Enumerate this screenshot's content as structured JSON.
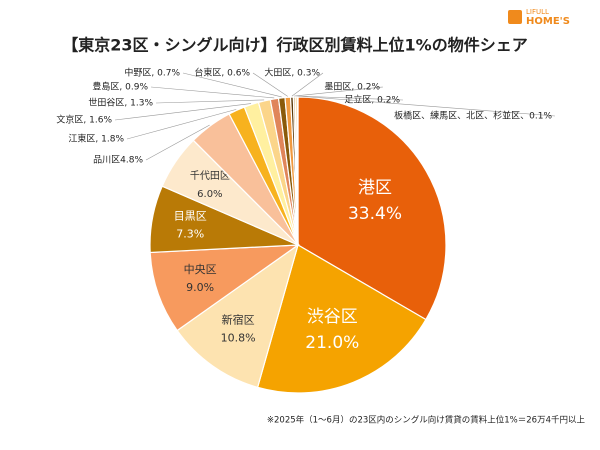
{
  "chart_data": {
    "type": "pie",
    "title": "【東京23区・シングル向け】行政区別賃料上位1%の物件シェア",
    "logo": [
      "LIFULL",
      "HOME'S"
    ],
    "footnote": "※2025年（1～6月）の23区内のシングル向け賃貸の賃料上位1%＝26万4千円以上",
    "values": [
      33.4,
      21.0,
      10.8,
      9.0,
      7.3,
      6.0,
      4.8,
      1.8,
      1.6,
      1.3,
      0.9,
      0.7,
      0.6,
      0.3,
      0.2,
      0.2,
      0.1
    ],
    "labels": [
      [
        "港区",
        "33.4%"
      ],
      [
        "渋谷区",
        "21.0%"
      ],
      [
        "新宿区",
        "10.8%"
      ],
      [
        "中央区",
        "9.0%"
      ],
      [
        "目黒区",
        "7.3%"
      ],
      [
        "千代田区",
        "6.0%"
      ],
      [
        "品川区4.8%"
      ],
      [
        "江東区, 1.8%"
      ],
      [
        "文京区, 1.6%"
      ],
      [
        "世田谷区, 1.3%"
      ],
      [
        "豊島区, 0.9%"
      ],
      [
        "中野区, 0.7%"
      ],
      [
        "台東区, 0.6%"
      ],
      [
        "大田区, 0.3%"
      ],
      [
        "墨田区, 0.2%"
      ],
      [
        "足立区, 0.2%"
      ],
      [
        "板橋区、練馬区、北区、杉並区、0.1%"
      ]
    ],
    "colors": [
      "#e8600a",
      "#f5a300",
      "#fde3b0",
      "#f79a5e",
      "#b97a06",
      "#fde9cc",
      "#f9c09a",
      "#f7b21e",
      "#fff0a0",
      "#fbd58a",
      "#e0855a",
      "#8a5a0a",
      "#f09a40",
      "#5a3a0a",
      "#c8a060",
      "#f5c878",
      "#a0a0a0"
    ]
  }
}
